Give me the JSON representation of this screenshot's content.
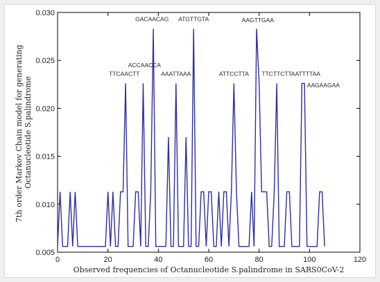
{
  "chart_data": {
    "type": "line",
    "xlabel": "Observed frequencies of Octanucleotide S.palindrome in SARS0CoV-2",
    "ylabel_lines": [
      "7th order Markov Chain model for generating",
      "Octanucleotide S.palindrome"
    ],
    "xlim": [
      0,
      120
    ],
    "ylim": [
      0.005,
      0.03
    ],
    "x_ticks": [
      0,
      20,
      40,
      60,
      80,
      100,
      120
    ],
    "x_tick_labels": [
      "0",
      "20",
      "40",
      "60",
      "80",
      "100",
      "120"
    ],
    "y_ticks": [
      0.005,
      0.01,
      0.015,
      0.02,
      0.025,
      0.03
    ],
    "y_tick_labels": [
      "0.005",
      "0.010",
      "0.015",
      "0.020",
      "0.025",
      "0.030"
    ],
    "series_color": "#2e2e9a",
    "series": [
      {
        "x": [
          0,
          1,
          2,
          3,
          4,
          5,
          6,
          7,
          8,
          9,
          10,
          11,
          12,
          13,
          14,
          15,
          16,
          17,
          18,
          19,
          20,
          21,
          22,
          23,
          24,
          25,
          26,
          27,
          28,
          29,
          30,
          31,
          32,
          33,
          34,
          35,
          36,
          37,
          38,
          39,
          40,
          41,
          42,
          43,
          44,
          45,
          46,
          47,
          48,
          49,
          50,
          51,
          52,
          53,
          54,
          55,
          56,
          57,
          58,
          59,
          60,
          61,
          62,
          63,
          64,
          65,
          66,
          67,
          68,
          69,
          70,
          71,
          72,
          73,
          74,
          75,
          76,
          77,
          78,
          79,
          80,
          81,
          82,
          83,
          84,
          85,
          86,
          87,
          88,
          89,
          90,
          91,
          92,
          93,
          94,
          95,
          96,
          97,
          98,
          99,
          100,
          101,
          102,
          103,
          104,
          105,
          106
        ],
        "y": [
          0.0056,
          0.0113,
          0.0056,
          0.0056,
          0.0056,
          0.0113,
          0.0056,
          0.0113,
          0.0056,
          0.0056,
          0.0056,
          0.0056,
          0.0056,
          0.0056,
          0.0056,
          0.0056,
          0.0056,
          0.0056,
          0.0056,
          0.0056,
          0.0113,
          0.0056,
          0.0113,
          0.0056,
          0.0056,
          0.0113,
          0.0113,
          0.0226,
          0.0056,
          0.0056,
          0.0056,
          0.0113,
          0.0113,
          0.0056,
          0.0226,
          0.0056,
          0.0056,
          0.0113,
          0.0283,
          0.0056,
          0.0056,
          0.0056,
          0.0056,
          0.0056,
          0.017,
          0.0056,
          0.0056,
          0.0226,
          0.0056,
          0.0056,
          0.0056,
          0.017,
          0.0056,
          0.0056,
          0.0283,
          0.0056,
          0.0056,
          0.0113,
          0.0113,
          0.0056,
          0.0113,
          0.0113,
          0.0056,
          0.0056,
          0.0113,
          0.0056,
          0.0113,
          0.0113,
          0.0056,
          0.0113,
          0.0226,
          0.0113,
          0.0056,
          0.0056,
          0.0056,
          0.0056,
          0.0056,
          0.0113,
          0.0056,
          0.0283,
          0.0226,
          0.0113,
          0.0113,
          0.0113,
          0.0056,
          0.0056,
          0.0113,
          0.0226,
          0.0056,
          0.0056,
          0.0056,
          0.0113,
          0.0113,
          0.0056,
          0.0056,
          0.0056,
          0.0056,
          0.0226,
          0.0226,
          0.0056,
          0.0056,
          0.0056,
          0.0056,
          0.0056,
          0.0113,
          0.0113,
          0.0056
        ]
      }
    ],
    "annotations": [
      {
        "text": "TTCAACTT",
        "x": 26.5,
        "y": 0.0234
      },
      {
        "text": "ACCAACCA",
        "x": 34.5,
        "y": 0.0243
      },
      {
        "text": "GACAACAG",
        "x": 37.5,
        "y": 0.0291
      },
      {
        "text": "AAATTAAA",
        "x": 47,
        "y": 0.0234
      },
      {
        "text": "ATGTTGTA",
        "x": 54,
        "y": 0.0291
      },
      {
        "text": "ATTCCTTA",
        "x": 70,
        "y": 0.0234
      },
      {
        "text": "AAGTTGAA",
        "x": 79.5,
        "y": 0.029
      },
      {
        "text": "TTCTTCTT",
        "x": 87,
        "y": 0.0234
      },
      {
        "text": "AATTTTAA",
        "x": 98.5,
        "y": 0.0234
      },
      {
        "text": "AAGAAGAA",
        "x": 105.5,
        "y": 0.0222
      }
    ]
  }
}
